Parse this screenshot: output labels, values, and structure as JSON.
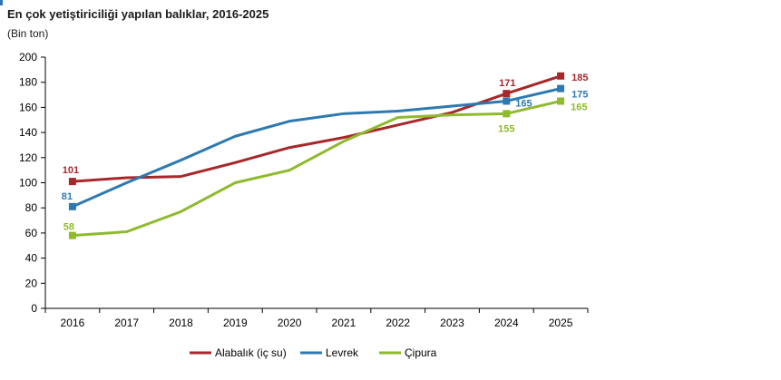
{
  "chart_data": {
    "type": "line",
    "title": "En çok yetiştiriciliği yapılan balıklar, 2016-2025",
    "ylabel": "(Bin ton)",
    "xlabel": "",
    "categories": [
      "2016",
      "2017",
      "2018",
      "2019",
      "2020",
      "2021",
      "2022",
      "2023",
      "2024",
      "2025"
    ],
    "ylim": [
      0,
      200
    ],
    "yticks": [
      0,
      20,
      40,
      60,
      80,
      100,
      120,
      140,
      160,
      180,
      200
    ],
    "grid": false,
    "legend_position": "bottom",
    "series": [
      {
        "name": "Alabalık (iç su)",
        "color": "#a8272b",
        "values": [
          101,
          104,
          105,
          116,
          128,
          136,
          146,
          156,
          171,
          185
        ],
        "labels": [
          {
            "index": 0,
            "text": "101"
          },
          {
            "index": 8,
            "text": "171"
          },
          {
            "index": 9,
            "text": "185"
          }
        ]
      },
      {
        "name": "Levrek",
        "color": "#2e7ab0",
        "values": [
          81,
          100,
          118,
          137,
          149,
          155,
          157,
          161,
          165,
          175
        ],
        "labels": [
          {
            "index": 0,
            "text": "81"
          },
          {
            "index": 8,
            "text": "165"
          },
          {
            "index": 9,
            "text": "175"
          }
        ]
      },
      {
        "name": "Çipura",
        "color": "#8fba2d",
        "values": [
          58,
          61,
          77,
          100,
          110,
          133,
          152,
          154,
          155,
          165
        ],
        "labels": [
          {
            "index": 0,
            "text": "58"
          },
          {
            "index": 8,
            "text": "155"
          },
          {
            "index": 9,
            "text": "165"
          }
        ]
      }
    ]
  }
}
